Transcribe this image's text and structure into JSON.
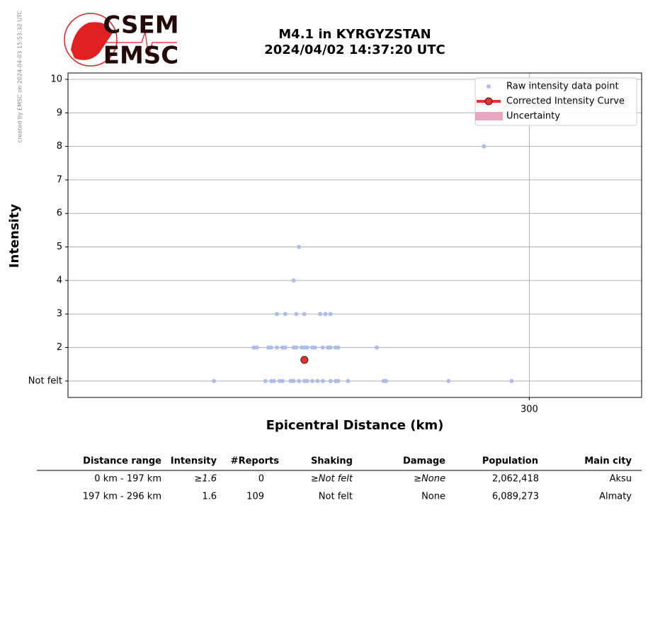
{
  "credit": "created by EMSC on 2024-04-03 15:53:32 UTC",
  "logo": {
    "top": "CSEM",
    "bottom": "EMSC"
  },
  "chart_data": {
    "type": "scatter",
    "title": "M4.1 in KYRGYZSTAN",
    "subtitle": "2024/04/02 14:37:20 UTC",
    "x_label": "Epicentral Distance (km)",
    "y_label": "Intensity",
    "x_log": true,
    "xlim": [
      124,
      372
    ],
    "xticks": [
      300
    ],
    "ylim": [
      0.51,
      10.19
    ],
    "yticks": [
      {
        "value": 1,
        "label": "Not felt"
      },
      2,
      3,
      4,
      5,
      6,
      7,
      8,
      9,
      10
    ],
    "grid": true,
    "legend": "upper right",
    "series": [
      {
        "name": "Raw intensity data point",
        "color": "#aebce8",
        "x": [
          275,
          193,
          191,
          185,
          188,
          192,
          195,
          201,
          203,
          205,
          177,
          178,
          182,
          183,
          185,
          187,
          188,
          191,
          192,
          194,
          195,
          196,
          198,
          199,
          202,
          204,
          205,
          207,
          208,
          224,
          164,
          181,
          183,
          184,
          186,
          187,
          190,
          191,
          193,
          195,
          196,
          198,
          200,
          202,
          205,
          207,
          208,
          212,
          227,
          228,
          257,
          290
        ],
        "values": [
          8,
          5,
          4,
          3,
          3,
          3,
          3,
          3,
          3,
          3,
          2,
          2,
          2,
          2,
          2,
          2,
          2,
          2,
          2,
          2,
          2,
          2,
          2,
          2,
          2,
          2,
          2,
          2,
          2,
          2,
          1,
          1,
          1,
          1,
          1,
          1,
          1,
          1,
          1,
          1,
          1,
          1,
          1,
          1,
          1,
          1,
          1,
          1,
          1,
          1,
          1,
          1
        ]
      },
      {
        "name": "Corrected Intensity Curve",
        "color": "#f03030",
        "x": [
          195
        ],
        "values": [
          1.63
        ]
      },
      {
        "name": "Uncertainty",
        "color": "#e8a8c4",
        "x": [],
        "values": []
      }
    ]
  },
  "table": {
    "header": [
      "Distance range",
      "Intensity",
      "#Reports",
      "Shaking",
      "Damage",
      "Population",
      "Main city"
    ],
    "rows": [
      [
        "0 km -  197 km",
        "≥1.6",
        "0",
        "≥Not felt",
        "≥None",
        "2,062,418",
        "Aksu"
      ],
      [
        "197 km -  296 km",
        "1.6",
        "109",
        "Not felt",
        "None",
        "6,089,273",
        "Almaty"
      ]
    ]
  }
}
